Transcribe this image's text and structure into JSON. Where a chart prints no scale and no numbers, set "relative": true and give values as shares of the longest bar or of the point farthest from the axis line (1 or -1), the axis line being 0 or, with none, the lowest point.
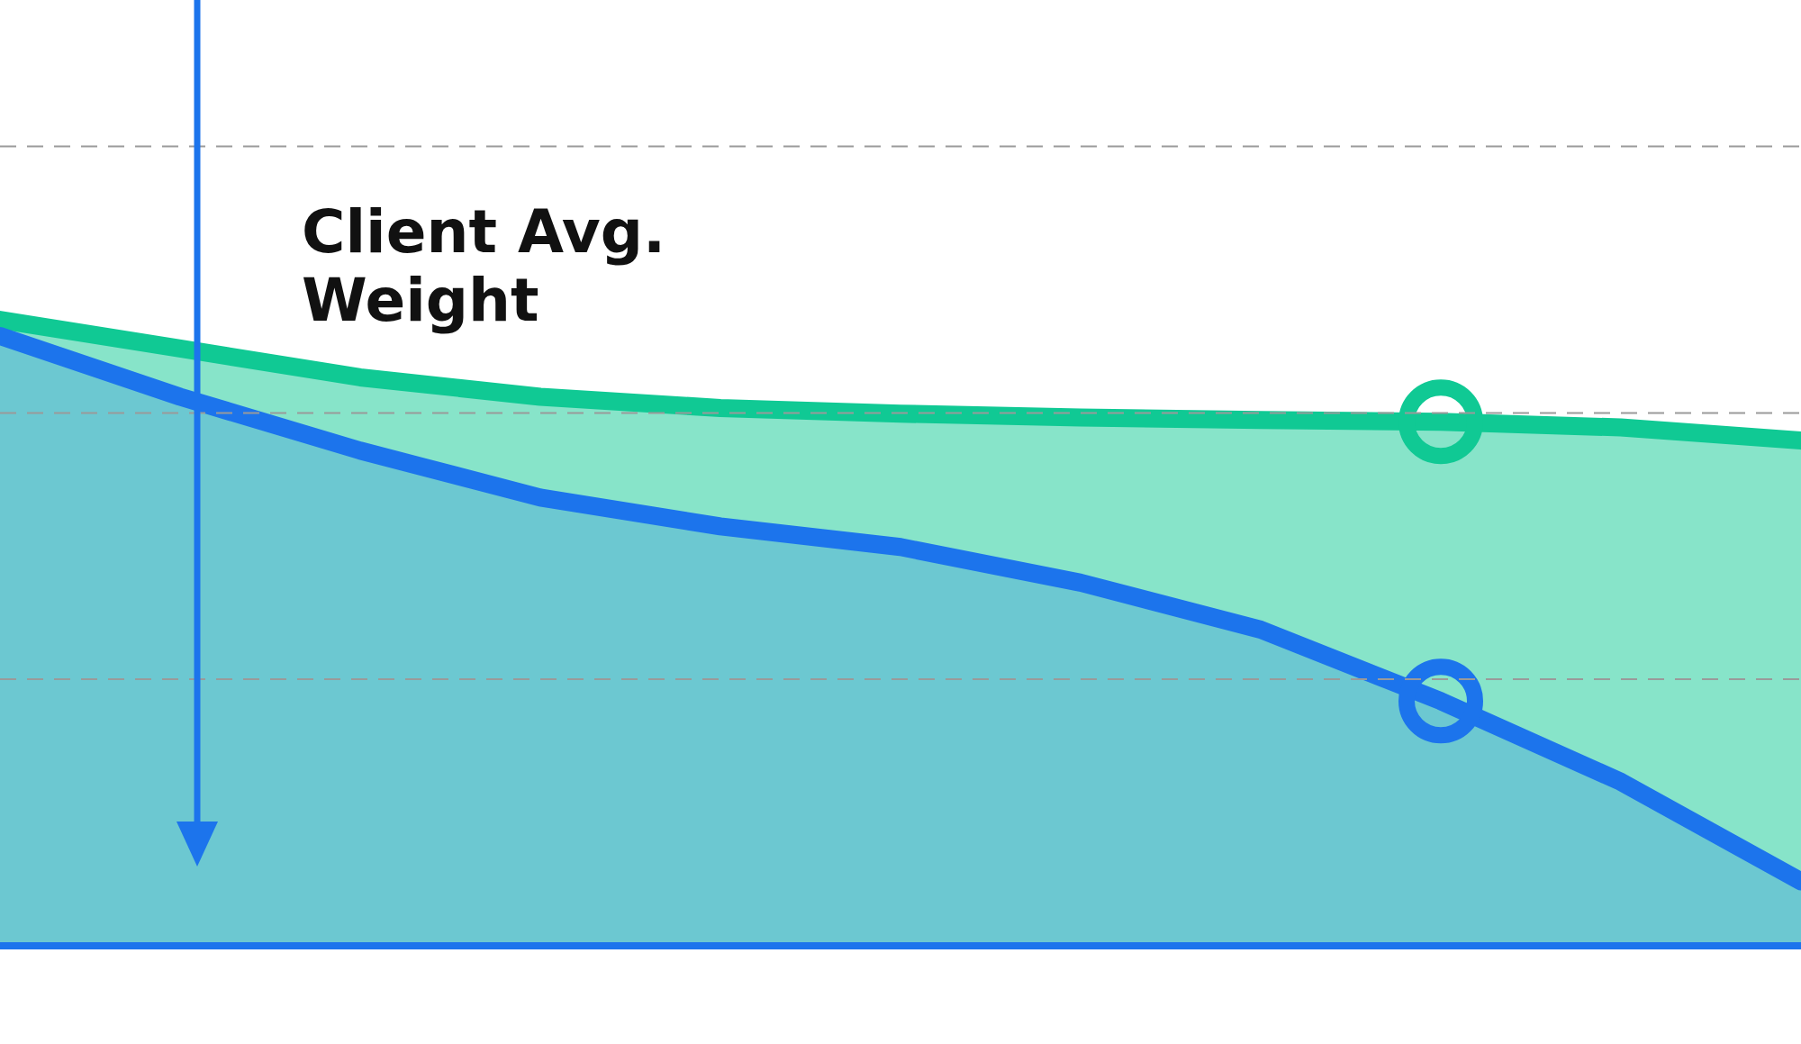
{
  "chart_data": {
    "type": "area",
    "relative": true,
    "ref_lines": [
      {
        "axis": "y",
        "value": 0.426,
        "color": "#9a9a9a",
        "line_style": "dashed"
      },
      {
        "axis": "y",
        "value": 0.851,
        "color": "#9a9a9a",
        "line_style": "dashed"
      },
      {
        "axis": "y",
        "value": 1.277,
        "color": "#9a9a9a",
        "line_style": "dashed"
      }
    ],
    "categories": [
      null,
      null,
      null,
      null,
      null,
      null,
      null,
      null,
      null,
      null,
      null
    ],
    "series": [
      {
        "color": "#10c994",
        "values": [
          1,
          0.954,
          0.908,
          0.877,
          0.859,
          0.85,
          0.844,
          0.84,
          0.837,
          0.828,
          0.807
        ]
      },
      {
        "color": "#1c74ec",
        "values": [
          0.974,
          0.877,
          0.791,
          0.716,
          0.67,
          0.637,
          0.58,
          0.505,
          0.391,
          0.262,
          0.103
        ]
      }
    ],
    "annotations": [
      "Client Avg. Weight"
    ]
  }
}
